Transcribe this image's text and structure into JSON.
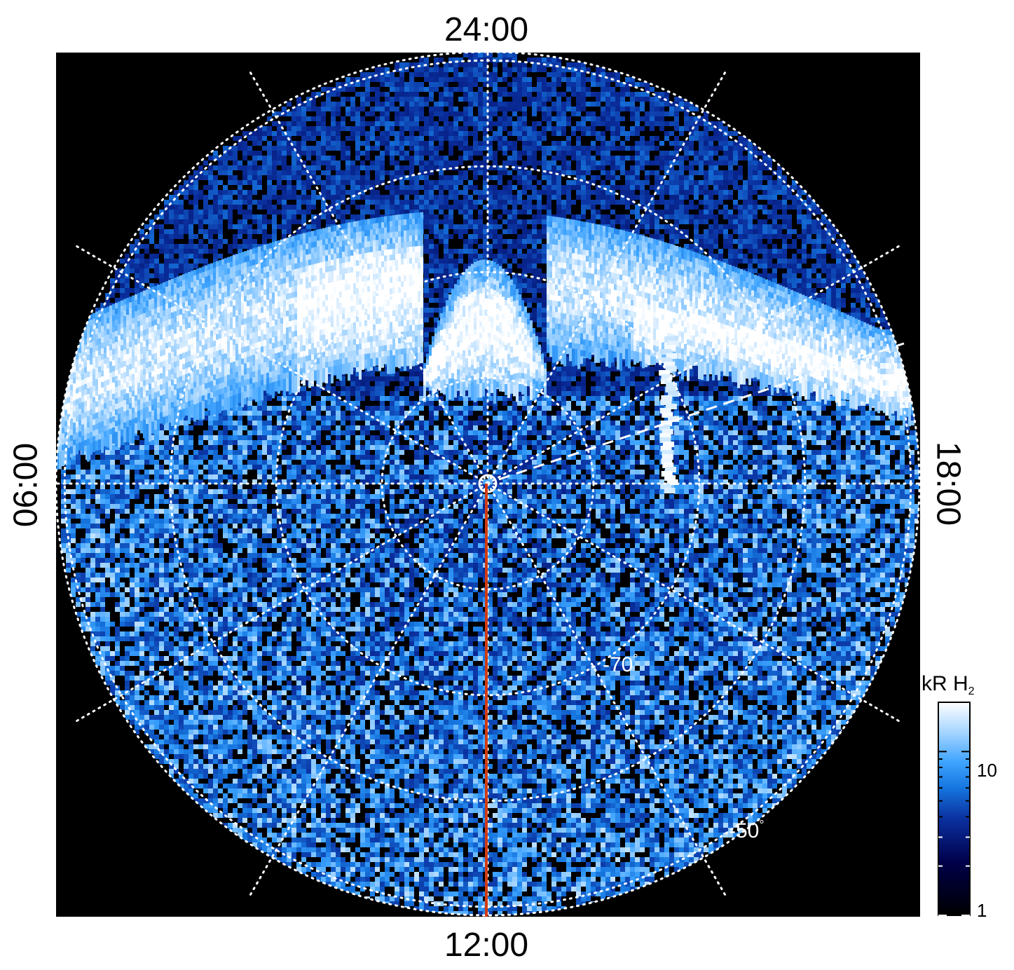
{
  "chart_data": {
    "type": "polar-heatmap",
    "title": "",
    "local_time_labels": {
      "top": "24:00",
      "bottom": "12:00",
      "left": "06:00",
      "right": "18:00"
    },
    "latitude_labels": [
      "-70°",
      "-50°"
    ],
    "latitude_label_text": [
      {
        "value": "-70",
        "unit": "°"
      },
      {
        "value": "-50",
        "unit": "°"
      }
    ],
    "colorbar": {
      "title": "kR H",
      "title_subscript": "2",
      "scale": "log",
      "range": [
        1,
        20
      ],
      "ticks": [
        "10",
        "1"
      ],
      "colors": [
        "#000000",
        "#00004a",
        "#0a2f9e",
        "#1677e0",
        "#3fa4ff",
        "#9fd2ff",
        "#ffffff"
      ]
    },
    "grid": {
      "latitude_circles_deg": [
        -50,
        -60,
        -70,
        -80
      ],
      "local_time_meridians_hours": [
        0,
        2,
        4,
        6,
        8,
        10,
        12,
        14,
        16,
        18,
        20,
        22
      ],
      "style": "dotted white"
    },
    "auroral_oval": {
      "description_values_kR": {
        "peak": 20,
        "background": 2
      },
      "local_time_extent_hours": [
        4,
        20
      ]
    },
    "overlays": {
      "red_meridian_local_time": "12:00",
      "dashed_line_local_time": "~17:00"
    },
    "colors": {
      "background": "#000000",
      "grid": "#ffffff",
      "meridian": "#d23a12"
    }
  }
}
